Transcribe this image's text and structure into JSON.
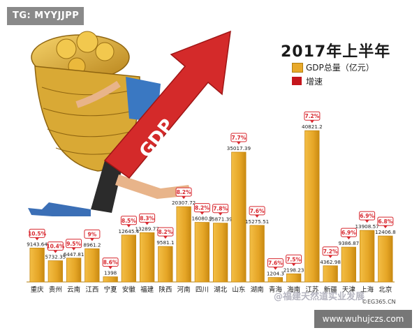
{
  "badges": {
    "top_left": "TG: MYYJJPP",
    "bottom_right": "www.wuhujczs.com"
  },
  "credit": "©EG365.CN",
  "watermark": "@福建天然道实业发展",
  "colors": {
    "bar": "#E8A92A",
    "bar_edge": "#C98A12",
    "growth": "#D8272E",
    "arrow": "#D42A2A",
    "coins": "#D9A935"
  },
  "chart_data": {
    "type": "bar",
    "title": "2017年上半年",
    "legend": [
      {
        "label": "GDP总量（亿元）",
        "color": "#E8A92A"
      },
      {
        "label": "增速",
        "color": "#C4161C"
      }
    ],
    "categories": [
      "重庆",
      "贵州",
      "云南",
      "江西",
      "宁夏",
      "安徽",
      "福建",
      "陕西",
      "河南",
      "四川",
      "湖北",
      "山东",
      "湖南",
      "青海",
      "海南",
      "江苏",
      "新疆",
      "天津",
      "上海",
      "北京"
    ],
    "series": [
      {
        "name": "GDP总量（亿元）",
        "values": [
          9143.64,
          5732.35,
          6447.81,
          8961.2,
          1398,
          12645.4,
          13289.77,
          9581.1,
          20307.72,
          16080.3,
          15871.39,
          35017.39,
          15275.51,
          1204.3,
          2198.23,
          40821.2,
          4362.98,
          9386.87,
          13908.57,
          12406.8
        ],
        "value_labels": [
          "9143.64",
          "5732.35",
          "6447.81",
          "8961.2",
          "1398",
          "12645.4",
          "13289.77",
          "9581.1",
          "20307.72",
          "16080.3",
          "15871.39",
          "35017.39",
          "15275.51",
          "1204.3",
          "2198.23",
          "40821.2",
          "4362.98",
          "9386.87",
          "13908.57",
          "12406.8"
        ]
      },
      {
        "name": "增速",
        "values": [
          10.5,
          10.4,
          9.5,
          9,
          8.6,
          8.5,
          8.3,
          8.2,
          8.2,
          8.2,
          7.8,
          7.7,
          7.6,
          7.6,
          7.5,
          7.2,
          7.2,
          6.9,
          6.9,
          6.8
        ],
        "value_labels": [
          "10.5%",
          "10.4%",
          "9.5%",
          "9%",
          "8.6%",
          "8.5%",
          "8.3%",
          "8.2%",
          "8.2%",
          "8.2%",
          "7.8%",
          "7.7%",
          "7.6%",
          "7.6%",
          "7.5%",
          "7.2%",
          "7.2%",
          "6.9%",
          "6.9%",
          "6.8%"
        ]
      }
    ],
    "ylim": [
      0,
      45000
    ],
    "grid": false,
    "legend_position": "top-right",
    "illustration": {
      "arrow_text": "GDP"
    }
  }
}
